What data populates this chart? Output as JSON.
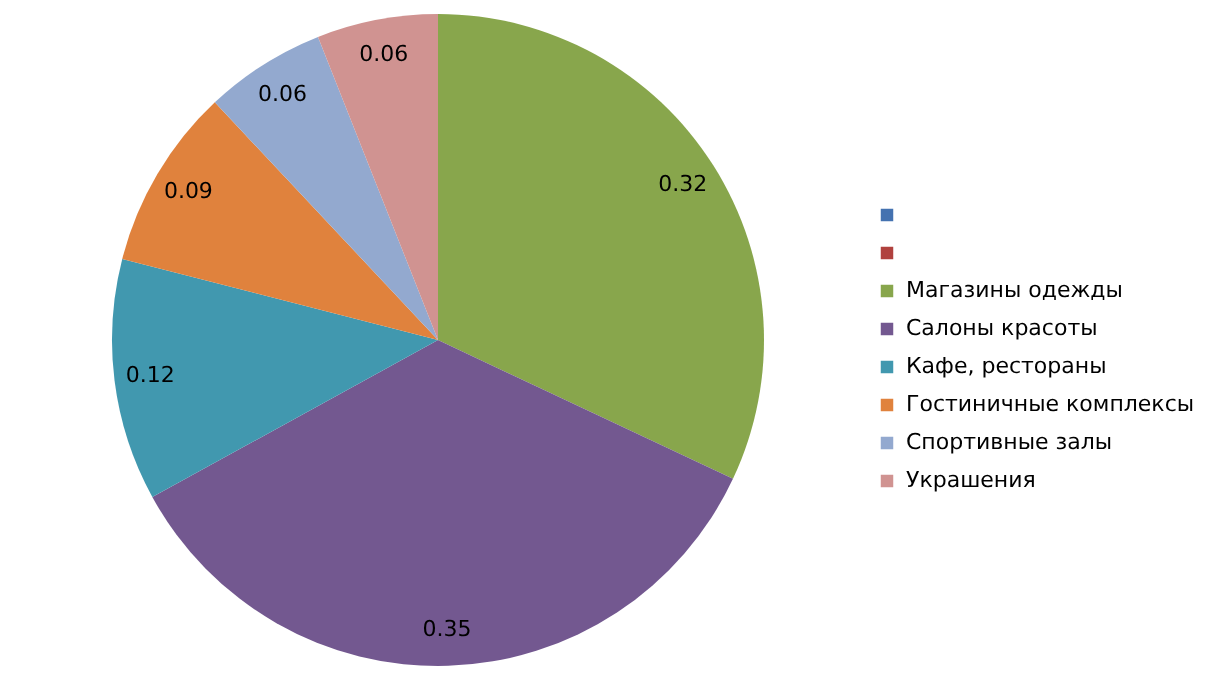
{
  "chart_data": {
    "type": "pie",
    "categories": [
      null,
      null,
      "Магазины одежды",
      "Салоны красоты",
      "Кафе, рестораны",
      "Гостиничные комплексы",
      "Спортивные залы",
      "Украшения"
    ],
    "values": [
      0,
      0,
      0.32,
      0.35,
      0.12,
      0.09,
      0.06,
      0.06
    ],
    "colors": [
      "#4472b0",
      "#b0413e",
      "#88a64c",
      "#735890",
      "#4198af",
      "#e0823d",
      "#93a9cf",
      "#d09391"
    ],
    "data_labels": true,
    "legend": "right"
  }
}
